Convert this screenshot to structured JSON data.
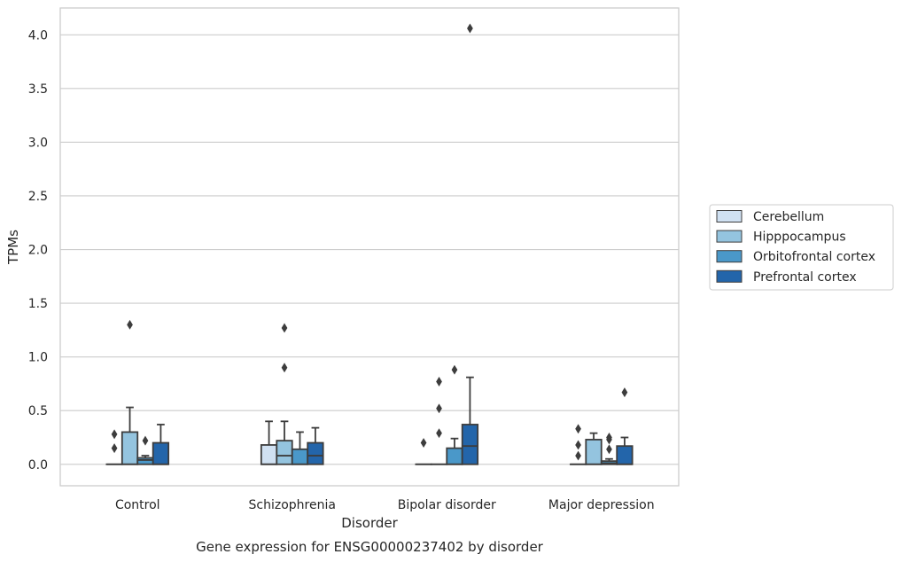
{
  "chart_data": {
    "type": "box",
    "title": "Gene expression for ENSG00000237402 by disorder",
    "xlabel": "Disorder",
    "ylabel": "TPMs",
    "ylim": [
      -0.2,
      4.25
    ],
    "yticks": [
      "0.0",
      "0.5",
      "1.0",
      "1.5",
      "2.0",
      "2.5",
      "3.0",
      "3.5",
      "4.0"
    ],
    "grid": "horizontal",
    "legend_position": "right",
    "categories": [
      "Control",
      "Schizophrenia",
      "Bipolar disorder",
      "Major depression"
    ],
    "series": [
      {
        "name": "Cerebellum",
        "color": "#d0e1f2",
        "boxes": [
          {
            "q1": 0.0,
            "median": 0.0,
            "q3": 0.0,
            "whislo": 0.0,
            "whishi": 0.0,
            "fliers": [
              0.28,
              0.15
            ]
          },
          {
            "q1": 0.0,
            "median": 0.0,
            "q3": 0.18,
            "whislo": 0.0,
            "whishi": 0.4,
            "fliers": []
          },
          {
            "q1": 0.0,
            "median": 0.0,
            "q3": 0.0,
            "whislo": 0.0,
            "whishi": 0.0,
            "fliers": [
              0.2
            ]
          },
          {
            "q1": 0.0,
            "median": 0.0,
            "q3": 0.0,
            "whislo": 0.0,
            "whishi": 0.0,
            "fliers": [
              0.33,
              0.18,
              0.08
            ]
          }
        ]
      },
      {
        "name": "Hipppocampus",
        "color": "#94c4df",
        "boxes": [
          {
            "q1": 0.0,
            "median": 0.0,
            "q3": 0.3,
            "whislo": 0.0,
            "whishi": 0.53,
            "fliers": [
              1.3
            ]
          },
          {
            "q1": 0.0,
            "median": 0.08,
            "q3": 0.22,
            "whislo": 0.0,
            "whishi": 0.4,
            "fliers": [
              1.27,
              0.9
            ]
          },
          {
            "q1": 0.0,
            "median": 0.0,
            "q3": 0.0,
            "whislo": 0.0,
            "whishi": 0.0,
            "fliers": [
              0.77,
              0.52,
              0.29
            ]
          },
          {
            "q1": 0.0,
            "median": 0.0,
            "q3": 0.23,
            "whislo": 0.0,
            "whishi": 0.29,
            "fliers": []
          }
        ]
      },
      {
        "name": "Orbitofrontal cortex",
        "color": "#4a98c9",
        "boxes": [
          {
            "q1": 0.0,
            "median": 0.04,
            "q3": 0.06,
            "whislo": 0.0,
            "whishi": 0.08,
            "fliers": [
              0.22
            ]
          },
          {
            "q1": 0.0,
            "median": 0.0,
            "q3": 0.14,
            "whislo": 0.0,
            "whishi": 0.3,
            "fliers": []
          },
          {
            "q1": 0.0,
            "median": 0.0,
            "q3": 0.15,
            "whislo": 0.0,
            "whishi": 0.24,
            "fliers": [
              0.88
            ]
          },
          {
            "q1": 0.0,
            "median": 0.01,
            "q3": 0.03,
            "whislo": 0.0,
            "whishi": 0.05,
            "fliers": [
              0.25,
              0.23,
              0.14
            ]
          }
        ]
      },
      {
        "name": "Prefrontal cortex",
        "color": "#2365aa",
        "boxes": [
          {
            "q1": 0.0,
            "median": 0.0,
            "q3": 0.2,
            "whislo": 0.0,
            "whishi": 0.37,
            "fliers": []
          },
          {
            "q1": 0.0,
            "median": 0.08,
            "q3": 0.2,
            "whislo": 0.0,
            "whishi": 0.34,
            "fliers": []
          },
          {
            "q1": 0.0,
            "median": 0.17,
            "q3": 0.37,
            "whislo": 0.0,
            "whishi": 0.81,
            "fliers": [
              4.06
            ]
          },
          {
            "q1": 0.0,
            "median": 0.0,
            "q3": 0.17,
            "whislo": 0.0,
            "whishi": 0.25,
            "fliers": [
              0.67
            ]
          }
        ]
      }
    ]
  }
}
